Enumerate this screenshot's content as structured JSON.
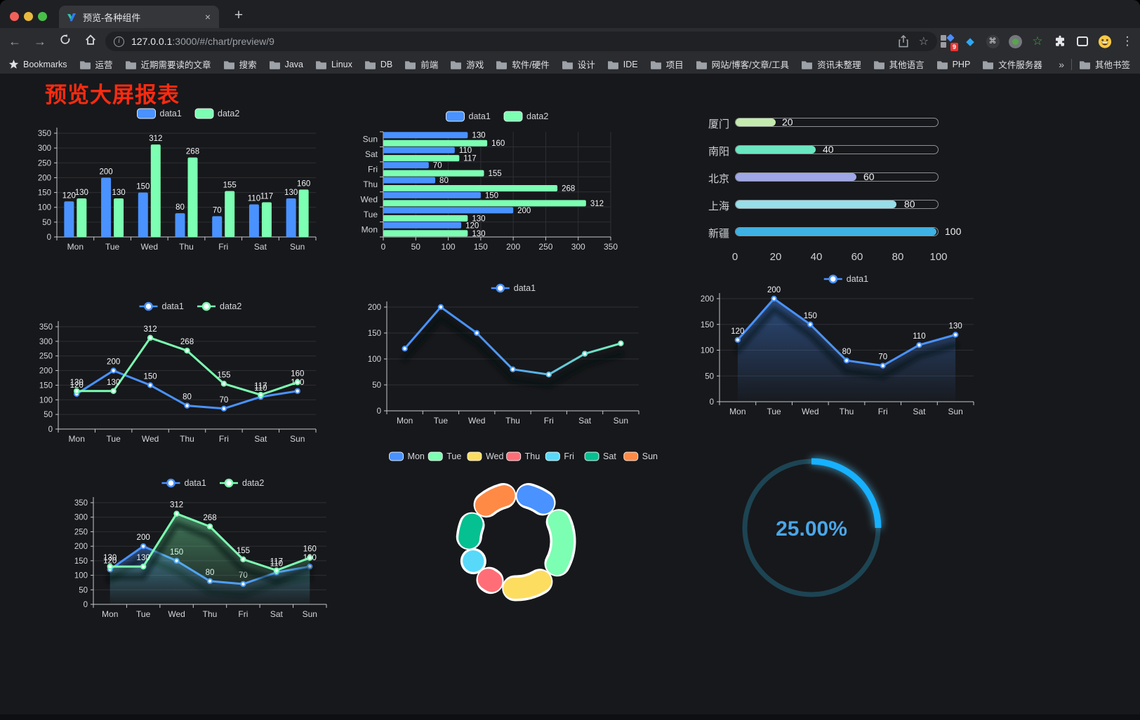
{
  "browser": {
    "tab_title": "预览-各种组件",
    "url_host": "127.0.0.1",
    "url_rest": ":3000/#/chart/preview/9",
    "bookmarks_label": "Bookmarks",
    "bookmark_folders": [
      "运营",
      "近期需要读的文章",
      "搜索",
      "Java",
      "Linux",
      "DB",
      "前端",
      "游戏",
      "软件/硬件",
      "设计",
      "IDE",
      "项目",
      "网站/博客/文章/工具",
      "资讯未整理",
      "其他语言",
      "PHP",
      "文件服务器"
    ],
    "bookmarks_overflow": "»",
    "other_bookmarks": "其他书签",
    "extension_badge": "9",
    "icons": {
      "close": "×",
      "new_tab": "+",
      "back": "←",
      "forward": "→",
      "menu": "⋮",
      "star": "☆",
      "command": "⌘",
      "green_star": "☆",
      "diamond": "◆"
    }
  },
  "page": {
    "title": "预览大屏报表",
    "title_color": "#fb2b10"
  },
  "chart_data": [
    {
      "id": "bar-grouped",
      "type": "bar",
      "legend": [
        "data1",
        "data2"
      ],
      "legend_position": "top",
      "categories": [
        "Mon",
        "Tue",
        "Wed",
        "Thu",
        "Fri",
        "Sat",
        "Sun"
      ],
      "series": [
        {
          "name": "data1",
          "color": "#4992ff",
          "values": [
            120,
            200,
            150,
            80,
            70,
            110,
            130
          ]
        },
        {
          "name": "data2",
          "color": "#7cffb2",
          "values": [
            130,
            130,
            312,
            268,
            155,
            117,
            160
          ]
        }
      ],
      "ylim": [
        0,
        350
      ],
      "yticks": [
        0,
        50,
        100,
        150,
        200,
        250,
        300,
        350
      ],
      "grid": true,
      "point_labels": true
    },
    {
      "id": "bar-horizontal",
      "type": "bar",
      "orientation": "horizontal",
      "legend": [
        "data1",
        "data2"
      ],
      "categories": [
        "Mon",
        "Tue",
        "Wed",
        "Thu",
        "Fri",
        "Sat",
        "Sun"
      ],
      "categories_top_to_bottom": [
        "Sun",
        "Sat",
        "Fri",
        "Thu",
        "Wed",
        "Tue",
        "Mon"
      ],
      "series": [
        {
          "name": "data1",
          "color": "#4992ff",
          "values": [
            120,
            200,
            150,
            80,
            70,
            110,
            130
          ]
        },
        {
          "name": "data2",
          "color": "#7cffb2",
          "values": [
            130,
            130,
            312,
            268,
            155,
            117,
            160
          ]
        }
      ],
      "xlim": [
        0,
        350
      ],
      "xticks": [
        0,
        50,
        100,
        150,
        200,
        250,
        300,
        350
      ],
      "grid": true,
      "point_labels": true
    },
    {
      "id": "progress-bars",
      "type": "bar",
      "orientation": "horizontal-progress",
      "max": 100,
      "xticks": [
        0,
        20,
        40,
        60,
        80,
        100
      ],
      "rows": [
        {
          "label": "厦门",
          "value": 20,
          "color": "#c4ebad"
        },
        {
          "label": "南阳",
          "value": 40,
          "color": "#6be6c1"
        },
        {
          "label": "北京",
          "value": 60,
          "color": "#a0a7e6"
        },
        {
          "label": "上海",
          "value": 80,
          "color": "#96dee8"
        },
        {
          "label": "新疆",
          "value": 100,
          "color": "#3fb1e3"
        }
      ]
    },
    {
      "id": "line-dual",
      "type": "line",
      "legend": [
        "data1",
        "data2"
      ],
      "categories": [
        "Mon",
        "Tue",
        "Wed",
        "Thu",
        "Fri",
        "Sat",
        "Sun"
      ],
      "series": [
        {
          "name": "data1",
          "color": "#4992ff",
          "values": [
            120,
            200,
            150,
            80,
            70,
            110,
            130
          ]
        },
        {
          "name": "data2",
          "color": "#7cffb2",
          "values": [
            130,
            130,
            312,
            268,
            155,
            117,
            160
          ]
        }
      ],
      "ylim": [
        0,
        350
      ],
      "yticks": [
        0,
        50,
        100,
        150,
        200,
        250,
        300,
        350
      ],
      "point_labels": true,
      "markers": true
    },
    {
      "id": "line-gradient",
      "type": "line",
      "legend": [
        "data1"
      ],
      "categories": [
        "Mon",
        "Tue",
        "Wed",
        "Thu",
        "Fri",
        "Sat",
        "Sun"
      ],
      "series": [
        {
          "name": "data1",
          "color": "#4992ff",
          "gradient": [
            "#4992ff",
            "#7cffb2"
          ],
          "values": [
            120,
            200,
            150,
            80,
            70,
            110,
            130
          ]
        }
      ],
      "ylim": [
        0,
        200
      ],
      "yticks": [
        0,
        50,
        100,
        150,
        200
      ],
      "point_labels": false,
      "markers": true,
      "shadow": true
    },
    {
      "id": "area-single",
      "type": "area",
      "legend": [
        "data1"
      ],
      "categories": [
        "Mon",
        "Tue",
        "Wed",
        "Thu",
        "Fri",
        "Sat",
        "Sun"
      ],
      "series": [
        {
          "name": "data1",
          "color": "#4992ff",
          "area": true,
          "values": [
            120,
            200,
            150,
            80,
            70,
            110,
            130
          ]
        }
      ],
      "ylim": [
        0,
        200
      ],
      "yticks": [
        0,
        50,
        100,
        150,
        200
      ],
      "point_labels": true,
      "markers": true,
      "shadow": true
    },
    {
      "id": "area-dual",
      "type": "area",
      "legend": [
        "data1",
        "data2"
      ],
      "categories": [
        "Mon",
        "Tue",
        "Wed",
        "Thu",
        "Fri",
        "Sat",
        "Sun"
      ],
      "series": [
        {
          "name": "data1",
          "color": "#4992ff",
          "area": true,
          "values": [
            120,
            200,
            150,
            80,
            70,
            110,
            130
          ]
        },
        {
          "name": "data2",
          "color": "#7cffb2",
          "area": true,
          "values": [
            130,
            130,
            312,
            268,
            155,
            117,
            160
          ]
        }
      ],
      "ylim": [
        0,
        350
      ],
      "yticks": [
        0,
        50,
        100,
        150,
        200,
        250,
        300,
        350
      ],
      "point_labels": true,
      "markers": true,
      "shadow": true
    },
    {
      "id": "donut",
      "type": "pie",
      "legend_position": "top",
      "categories": [
        "Mon",
        "Tue",
        "Wed",
        "Thu",
        "Fri",
        "Sat",
        "Sun"
      ],
      "values": [
        120,
        200,
        150,
        80,
        70,
        110,
        130
      ],
      "colors": [
        "#4992ff",
        "#7cffb2",
        "#fddd60",
        "#ff6e76",
        "#58d9f9",
        "#05c091",
        "#ff8a45"
      ],
      "border_color": "#ffffff"
    },
    {
      "id": "gauge",
      "type": "gauge",
      "percent": 25,
      "display": "25.00%",
      "color": "#17b1ff",
      "track_color": "#1d4453",
      "text_color": "#4aa6e8"
    }
  ]
}
